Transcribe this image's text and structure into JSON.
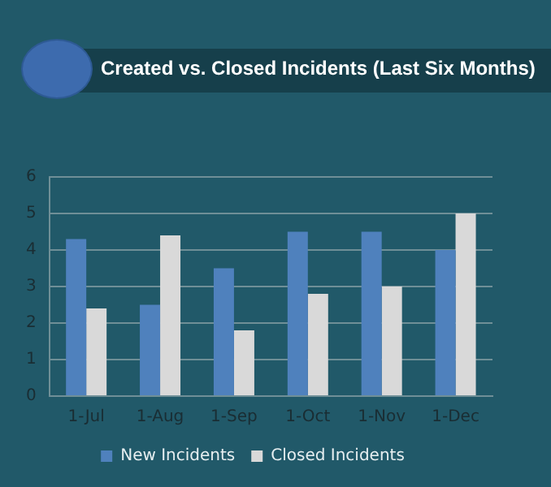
{
  "chart_data": {
    "type": "bar",
    "title": "Created vs. Closed Incidents (Last Six Months)",
    "categories": [
      "1-Jul",
      "1-Aug",
      "1-Sep",
      "1-Oct",
      "1-Nov",
      "1-Dec"
    ],
    "series": [
      {
        "name": "New Incidents",
        "color": "#4f81bd",
        "values": [
          4.3,
          2.5,
          3.5,
          4.5,
          4.5,
          4.0
        ]
      },
      {
        "name": "Closed Incidents",
        "color": "#d9d9d9",
        "values": [
          2.4,
          4.4,
          1.8,
          2.8,
          3.0,
          5.0
        ]
      }
    ],
    "ylim": [
      0,
      6
    ],
    "yticks": [
      0,
      1,
      2,
      3,
      4,
      5,
      6
    ],
    "grid": "y",
    "legend": "bottom"
  }
}
